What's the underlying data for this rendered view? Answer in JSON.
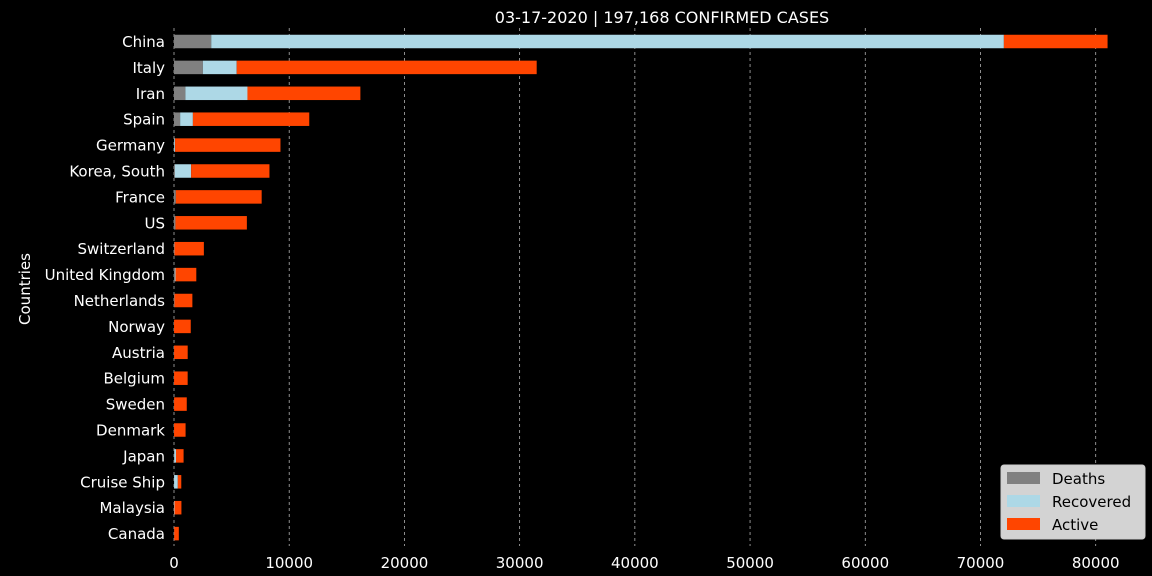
{
  "colors": {
    "background": "#000000",
    "text": "#ffffff",
    "grid": "#b0b0b0",
    "deaths": "#808080",
    "recovered": "#add8e6",
    "active": "#ff4500",
    "legend_bg": "#d3d3d3",
    "legend_text": "#000000"
  },
  "chart_data": {
    "type": "bar",
    "orientation": "horizontal",
    "stacked": true,
    "title": "03-17-2020 | 197,168 CONFIRMED CASES",
    "xlabel": "",
    "ylabel": "Countries",
    "xlim": [
      0,
      84800
    ],
    "xticks": [
      0,
      10000,
      20000,
      30000,
      40000,
      50000,
      60000,
      70000,
      80000
    ],
    "grid": "vertical dashed",
    "legend_position": "lower-right",
    "categories": [
      "China",
      "Italy",
      "Iran",
      "Spain",
      "Germany",
      "Korea, South",
      "France",
      "US",
      "Switzerland",
      "United Kingdom",
      "Netherlands",
      "Norway",
      "Austria",
      "Belgium",
      "Sweden",
      "Denmark",
      "Japan",
      "Cruise Ship",
      "Malaysia",
      "Canada"
    ],
    "series": [
      {
        "name": "Deaths",
        "values": [
          3230,
          2503,
          988,
          533,
          24,
          84,
          148,
          108,
          28,
          71,
          43,
          3,
          3,
          5,
          7,
          4,
          28,
          7,
          2,
          8
        ]
      },
      {
        "name": "Recovered",
        "values": [
          68800,
          2941,
          5389,
          1107,
          67,
          1401,
          12,
          17,
          15,
          65,
          2,
          1,
          6,
          1,
          1,
          1,
          144,
          325,
          42,
          11
        ]
      },
      {
        "name": "Active",
        "values": [
          9000,
          26036,
          9800,
          10100,
          9150,
          6800,
          7450,
          6200,
          2550,
          1800,
          1550,
          1450,
          1180,
          1180,
          1100,
          1000,
          660,
          300,
          600,
          400
        ]
      }
    ]
  }
}
